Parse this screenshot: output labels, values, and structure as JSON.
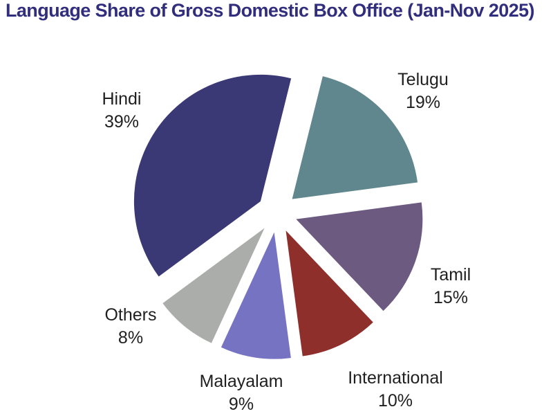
{
  "title": "Language Share of Gross Domestic Box Office (Jan-Nov 2025)",
  "title_color": "#322E7E",
  "label_text_color": "#1F1F1F",
  "background_color": "#FFFFFF",
  "chart_data": {
    "type": "pie",
    "title": "Language Share of Gross Domestic Box Office (Jan-Nov 2025)",
    "exploded": true,
    "start_angle_deg_clockwise_from_top": 14,
    "legend": "none",
    "label_style": "outside, name and percent on two lines",
    "slices": [
      {
        "label": "Telugu",
        "value": 19,
        "percent_label": "19%",
        "color": "#5F878D"
      },
      {
        "label": "Tamil",
        "value": 15,
        "percent_label": "15%",
        "color": "#6C5A81"
      },
      {
        "label": "International",
        "value": 10,
        "percent_label": "10%",
        "color": "#8E2F2C"
      },
      {
        "label": "Malayalam",
        "value": 9,
        "percent_label": "9%",
        "color": "#7674C2"
      },
      {
        "label": "Others",
        "value": 8,
        "percent_label": "8%",
        "color": "#ABADAA"
      },
      {
        "label": "Hindi",
        "value": 39,
        "percent_label": "39%",
        "color": "#3B3876"
      }
    ]
  }
}
